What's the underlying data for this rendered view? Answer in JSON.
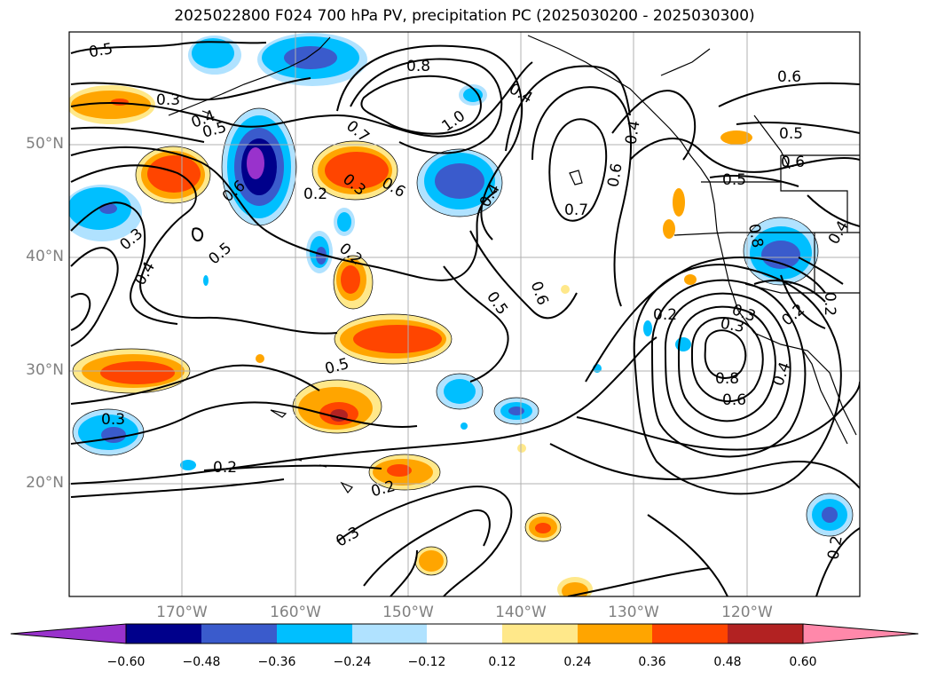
{
  "title": "2025022800 F024 700 hPa PV, precipitation PC (2025030200 - 2025030300)",
  "lat_labels": [
    "50°N",
    "40°N",
    "30°N",
    "20°N"
  ],
  "lon_labels": [
    "170°W",
    "160°W",
    "150°W",
    "140°W",
    "130°W",
    "120°W"
  ],
  "colorbar": {
    "ticks": [
      "−0.60",
      "−0.48",
      "−0.36",
      "−0.24",
      "−0.12",
      "0.12",
      "0.24",
      "0.36",
      "0.48",
      "0.60"
    ],
    "colors": {
      "neg_extend": "#9932cc",
      "neg5": "#00008b",
      "neg4": "#3a5bcc",
      "neg3": "#00bfff",
      "neg2": "#b0e2ff",
      "zero": "#ffffff",
      "pos2": "#ffe88a",
      "pos3": "#ffa500",
      "pos4": "#ff4500",
      "pos5": "#b22222",
      "pos_extend": "#ff88aa"
    }
  },
  "contour_labels": [
    "0.5",
    "0.3",
    "0.4",
    "0.5",
    "0.8",
    "1.0",
    "0.4",
    "0.6",
    "0.7",
    "0.4",
    "0.6",
    "0.7",
    "0.5",
    "0.6",
    "0.5",
    "0.6",
    "0.2",
    "0.3",
    "0.6",
    "0.4",
    "0.3",
    "0.4",
    "0.5",
    "0.2",
    "0.5",
    "0.6",
    "0.2",
    "0.5",
    "0.3",
    "0.2",
    "0.3",
    "0.8",
    "0.4",
    "0.8",
    "0.6",
    "0.2",
    "0.3",
    "0.2",
    "0.3",
    "0.2",
    "0.4",
    "0.2"
  ]
}
